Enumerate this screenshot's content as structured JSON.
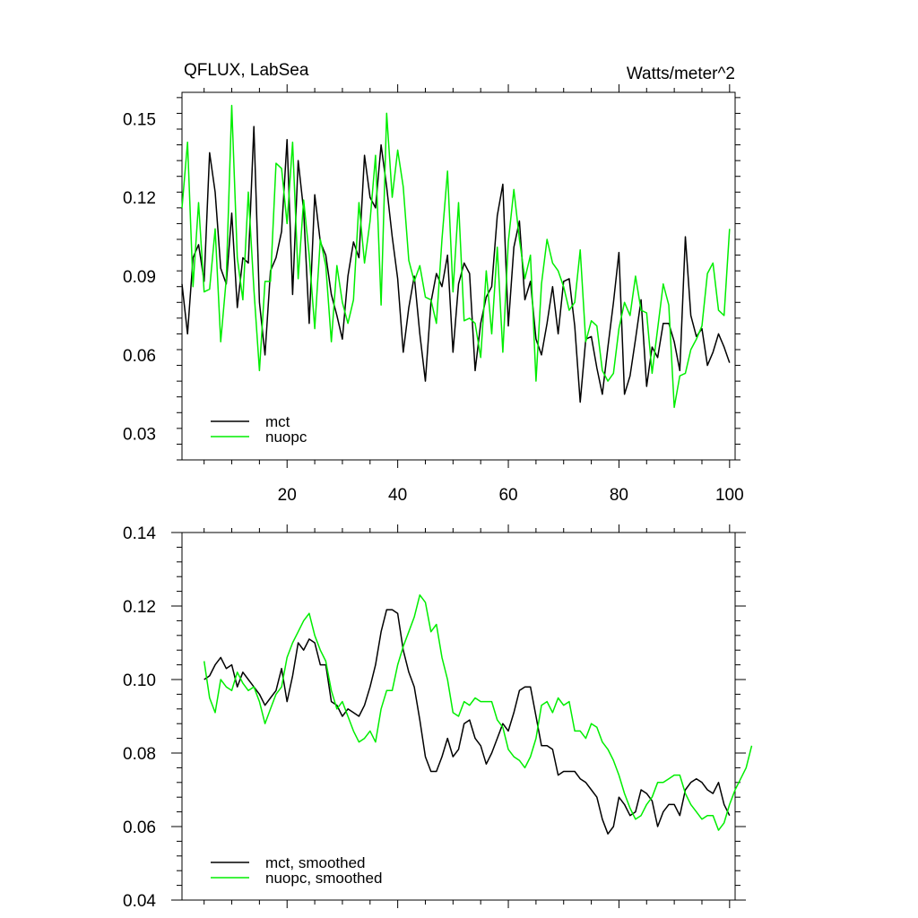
{
  "chart_data": [
    {
      "type": "line",
      "title_left": "QFLUX, LabSea",
      "title_right": "Watts/meter^2",
      "xlim": [
        1,
        101
      ],
      "ylim": [
        0.02,
        0.16
      ],
      "x_ticks": [
        20,
        40,
        60,
        80,
        100
      ],
      "x_tick_labels": [
        "20",
        "40",
        "60",
        "80",
        "100"
      ],
      "y_ticks": [
        0.03,
        0.06,
        0.09,
        0.12,
        0.15
      ],
      "y_tick_labels": [
        "0.03",
        "0.06",
        "0.09",
        "0.12",
        "0.15"
      ],
      "legend_position": "bottom-left",
      "x_start": 1,
      "series": [
        {
          "name": "mct",
          "color": "#000000",
          "values": [
            0.087,
            0.068,
            0.097,
            0.102,
            0.088,
            0.137,
            0.122,
            0.093,
            0.087,
            0.114,
            0.078,
            0.097,
            0.095,
            0.147,
            0.08,
            0.06,
            0.092,
            0.097,
            0.107,
            0.142,
            0.083,
            0.134,
            0.115,
            0.072,
            0.121,
            0.103,
            0.098,
            0.083,
            0.075,
            0.066,
            0.09,
            0.103,
            0.097,
            0.136,
            0.12,
            0.116,
            0.14,
            0.124,
            0.105,
            0.089,
            0.061,
            0.078,
            0.09,
            0.068,
            0.05,
            0.08,
            0.091,
            0.086,
            0.098,
            0.061,
            0.087,
            0.095,
            0.091,
            0.054,
            0.072,
            0.082,
            0.086,
            0.113,
            0.125,
            0.071,
            0.101,
            0.111,
            0.081,
            0.088,
            0.066,
            0.06,
            0.072,
            0.086,
            0.068,
            0.088,
            0.089,
            0.071,
            0.042,
            0.066,
            0.067,
            0.055,
            0.045,
            0.063,
            0.08,
            0.099,
            0.045,
            0.052,
            0.066,
            0.081,
            0.048,
            0.063,
            0.059,
            0.072,
            0.072,
            0.065,
            0.054,
            0.105,
            0.075,
            0.067,
            0.07,
            0.056,
            0.061,
            0.068,
            0.063,
            0.057
          ]
        },
        {
          "name": "nuopc",
          "color": "#00ee00",
          "values": [
            0.116,
            0.141,
            0.086,
            0.118,
            0.084,
            0.085,
            0.108,
            0.065,
            0.089,
            0.155,
            0.097,
            0.081,
            0.122,
            0.085,
            0.054,
            0.088,
            0.088,
            0.133,
            0.131,
            0.11,
            0.141,
            0.089,
            0.119,
            0.098,
            0.07,
            0.104,
            0.094,
            0.065,
            0.094,
            0.08,
            0.072,
            0.081,
            0.118,
            0.095,
            0.111,
            0.136,
            0.079,
            0.152,
            0.12,
            0.138,
            0.124,
            0.096,
            0.088,
            0.094,
            0.082,
            0.081,
            0.072,
            0.104,
            0.13,
            0.084,
            0.118,
            0.073,
            0.074,
            0.072,
            0.059,
            0.092,
            0.068,
            0.101,
            0.061,
            0.103,
            0.123,
            0.104,
            0.089,
            0.098,
            0.05,
            0.087,
            0.104,
            0.095,
            0.092,
            0.086,
            0.077,
            0.08,
            0.1,
            0.065,
            0.073,
            0.071,
            0.054,
            0.05,
            0.053,
            0.07,
            0.08,
            0.075,
            0.09,
            0.077,
            0.076,
            0.053,
            0.07,
            0.087,
            0.079,
            0.04,
            0.052,
            0.053,
            0.062,
            0.066,
            0.071,
            0.091,
            0.095,
            0.077,
            0.075,
            0.108
          ]
        }
      ]
    },
    {
      "type": "line",
      "xlim": [
        1,
        101
      ],
      "ylim": [
        0.04,
        0.14
      ],
      "x_ticks": [
        20,
        40,
        60,
        80,
        100
      ],
      "y_ticks": [
        0.04,
        0.06,
        0.08,
        0.1,
        0.12,
        0.14
      ],
      "y_tick_labels": [
        "0.04",
        "0.06",
        "0.08",
        "0.10",
        "0.12",
        "0.14"
      ],
      "legend_position": "bottom-left",
      "x_start": 5,
      "series": [
        {
          "name": "mct, smoothed",
          "color": "#000000",
          "values": [
            0.1,
            0.101,
            0.104,
            0.106,
            0.103,
            0.104,
            0.098,
            0.102,
            0.1,
            0.098,
            0.096,
            0.093,
            0.095,
            0.097,
            0.103,
            0.094,
            0.101,
            0.11,
            0.108,
            0.111,
            0.11,
            0.104,
            0.104,
            0.094,
            0.093,
            0.09,
            0.092,
            0.091,
            0.09,
            0.093,
            0.098,
            0.104,
            0.113,
            0.119,
            0.119,
            0.118,
            0.108,
            0.102,
            0.098,
            0.089,
            0.079,
            0.075,
            0.075,
            0.079,
            0.084,
            0.079,
            0.081,
            0.088,
            0.089,
            0.084,
            0.082,
            0.077,
            0.08,
            0.084,
            0.088,
            0.086,
            0.091,
            0.097,
            0.098,
            0.098,
            0.09,
            0.082,
            0.082,
            0.081,
            0.074,
            0.075,
            0.075,
            0.075,
            0.073,
            0.072,
            0.07,
            0.068,
            0.062,
            0.058,
            0.06,
            0.068,
            0.066,
            0.063,
            0.064,
            0.07,
            0.069,
            0.067,
            0.06,
            0.064,
            0.066,
            0.066,
            0.063,
            0.07,
            0.072,
            0.073,
            0.072,
            0.07,
            0.069,
            0.072,
            0.066,
            0.063
          ]
        },
        {
          "name": "nuopc, smoothed",
          "color": "#00ee00",
          "values": [
            0.105,
            0.095,
            0.091,
            0.1,
            0.098,
            0.097,
            0.102,
            0.099,
            0.097,
            0.098,
            0.094,
            0.088,
            0.092,
            0.096,
            0.098,
            0.106,
            0.11,
            0.113,
            0.116,
            0.118,
            0.112,
            0.108,
            0.105,
            0.097,
            0.092,
            0.094,
            0.09,
            0.086,
            0.083,
            0.084,
            0.086,
            0.083,
            0.092,
            0.097,
            0.097,
            0.104,
            0.109,
            0.113,
            0.117,
            0.123,
            0.121,
            0.113,
            0.115,
            0.106,
            0.1,
            0.091,
            0.09,
            0.094,
            0.093,
            0.095,
            0.094,
            0.094,
            0.094,
            0.089,
            0.087,
            0.081,
            0.079,
            0.078,
            0.076,
            0.079,
            0.084,
            0.093,
            0.094,
            0.091,
            0.095,
            0.093,
            0.094,
            0.086,
            0.086,
            0.084,
            0.088,
            0.087,
            0.083,
            0.081,
            0.078,
            0.074,
            0.069,
            0.065,
            0.062,
            0.063,
            0.066,
            0.068,
            0.072,
            0.072,
            0.073,
            0.074,
            0.074,
            0.069,
            0.066,
            0.064,
            0.062,
            0.063,
            0.063,
            0.059,
            0.061,
            0.066,
            0.07,
            0.073,
            0.076,
            0.082
          ]
        }
      ]
    }
  ]
}
